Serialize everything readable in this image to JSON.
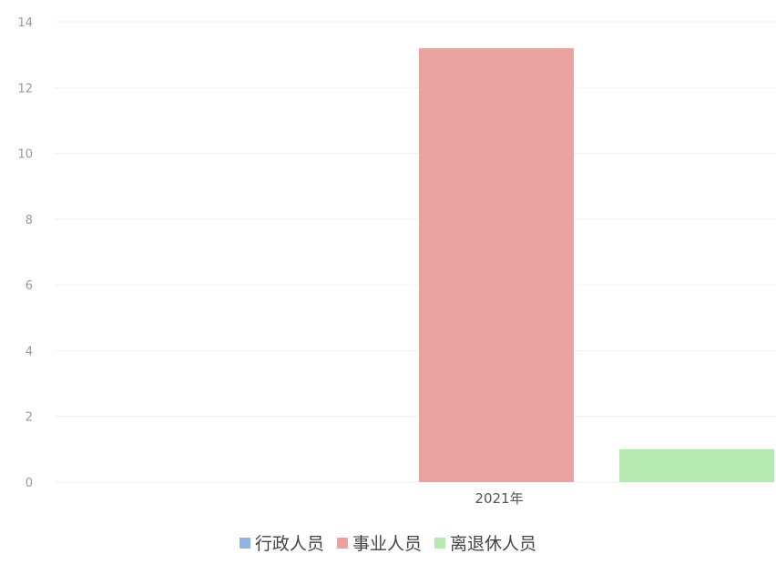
{
  "chart_data": {
    "type": "bar",
    "categories": [
      "2021年"
    ],
    "series": [
      {
        "name": "行政人员",
        "values": [
          0
        ],
        "color": "#8fb4e3"
      },
      {
        "name": "事业人员",
        "values": [
          13.2
        ],
        "color": "#eaa3a0"
      },
      {
        "name": "离退休人员",
        "values": [
          1
        ],
        "color": "#b6eab2"
      }
    ],
    "y_ticks": [
      "0",
      "2",
      "4",
      "6",
      "8",
      "10",
      "12",
      "14"
    ],
    "ylim": [
      0,
      14
    ],
    "grid": true,
    "legend_position": "bottom"
  }
}
